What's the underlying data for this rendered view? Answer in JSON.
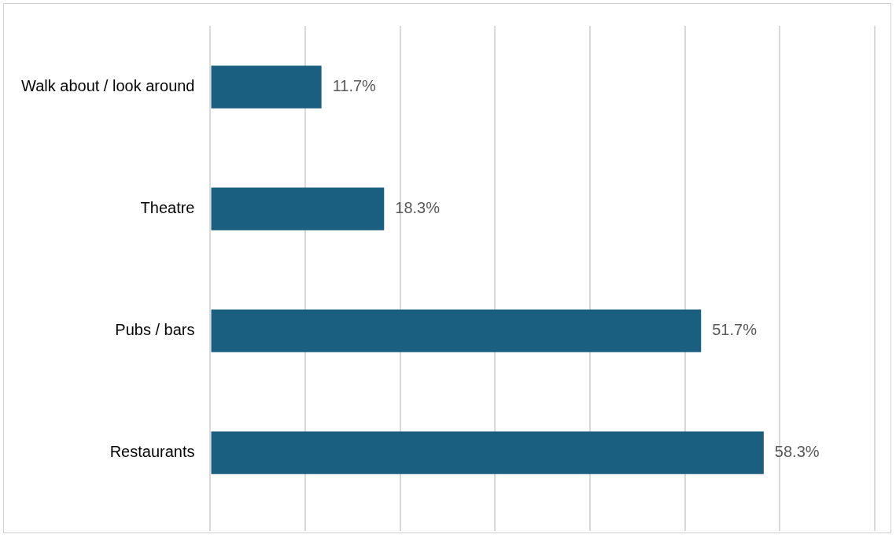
{
  "chart_data": {
    "type": "bar",
    "orientation": "horizontal",
    "categories": [
      "Walk about / look around",
      "Theatre",
      "Pubs / bars",
      "Restaurants"
    ],
    "values": [
      11.7,
      18.3,
      51.7,
      58.3
    ],
    "value_labels": [
      "11.7%",
      "18.3%",
      "51.7%",
      "58.3%"
    ],
    "color": "#1b5f80",
    "xlim": [
      0,
      70
    ],
    "xticks": [
      {
        "value": 0,
        "label": null
      },
      {
        "value": 10,
        "label": null
      },
      {
        "value": 20,
        "label": null
      },
      {
        "value": 30,
        "label": null
      },
      {
        "value": 40,
        "label": null
      },
      {
        "value": 50,
        "label": null
      },
      {
        "value": 60,
        "label": null
      },
      {
        "value": 70,
        "label": null
      }
    ],
    "grid": "x",
    "tick_labels": "y",
    "legend": false
  }
}
